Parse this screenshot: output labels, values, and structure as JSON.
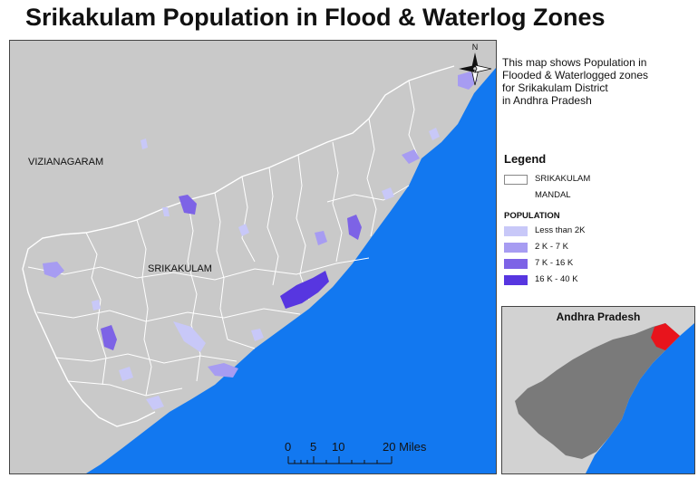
{
  "title": "Srikakulam Population in Flood & Waterlog Zones",
  "map": {
    "labels": {
      "neighbor": "VIZIANAGARAM",
      "district": "SRIKAKULAM"
    },
    "north_label": "N",
    "scale": {
      "ticks": [
        "0",
        "5",
        "10",
        "20 Miles"
      ]
    }
  },
  "description": {
    "line1": "This map shows Population in",
    "line2": "Flooded & Waterlogged zones",
    "line3": "for Srikakulam District",
    "line4": "in Andhra Pradesh"
  },
  "legend": {
    "title": "Legend",
    "district_label": "SRIKAKULAM",
    "mandal_label": "MANDAL",
    "population_heading": "POPULATION",
    "classes": [
      {
        "label": "Less than 2K",
        "color": "#c8c8f8"
      },
      {
        "label": "2 K - 7 K",
        "color": "#a79cf2"
      },
      {
        "label": "7 K - 16 K",
        "color": "#7d63e6"
      },
      {
        "label": "16 K - 40 K",
        "color": "#5736e0"
      }
    ]
  },
  "inset": {
    "title": "Andhra Pradesh",
    "state_color": "#7a7a7a",
    "highlight_color": "#e8141c"
  },
  "colors": {
    "land": "#c9c9c9",
    "water": "#1278f0",
    "boundary": "#ffffff"
  }
}
